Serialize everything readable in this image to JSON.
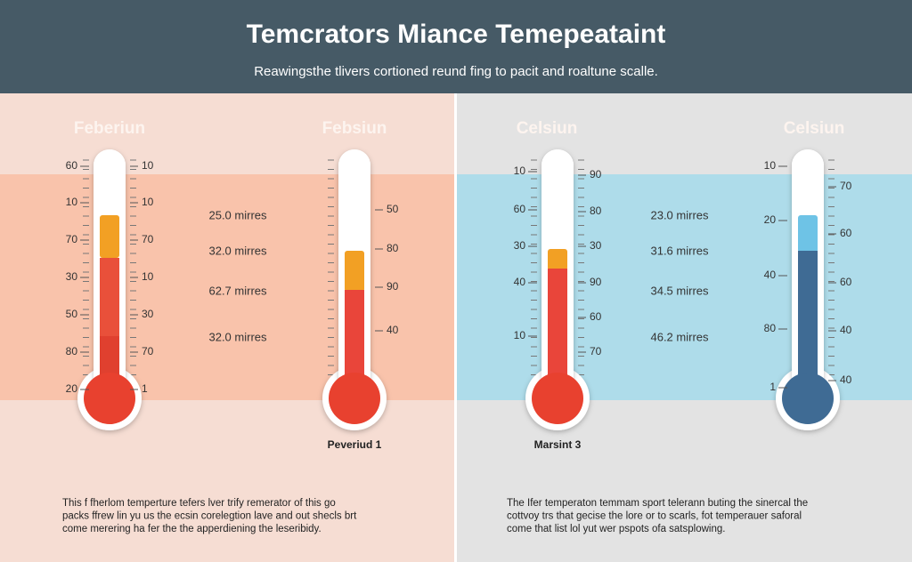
{
  "header": {
    "title": "Temcrators Miance Temepeataint",
    "subtitle": "Reawingsthe tlivers cortioned reund fing to pacit and roaltune scalle."
  },
  "thermometers": [
    {
      "label": "Feberiun",
      "left_scale": [
        "60",
        "10",
        "70",
        "30",
        "50",
        "80",
        "20"
      ],
      "right_scale": [
        "10",
        "10",
        "70",
        "10",
        "30",
        "70",
        "1"
      ]
    },
    {
      "label": "Febsiun",
      "right_scale": [
        "50",
        "80",
        "90",
        "40"
      ],
      "caption": "Peveriud 1"
    },
    {
      "label": "Celsiun",
      "left_scale": [
        "10",
        "60",
        "30",
        "40",
        "10"
      ],
      "right_scale": [
        "90",
        "80",
        "30",
        "90",
        "60",
        "70"
      ],
      "caption": "Marsint 3"
    },
    {
      "label": "Celsiun",
      "left_scale": [
        "10",
        "20",
        "40",
        "80",
        "1"
      ],
      "right_scale": [
        "70",
        "60",
        "60",
        "40",
        "40"
      ]
    }
  ],
  "readings_left": [
    "25.0 mirres",
    "32.0 mirres",
    "62.7 mirres",
    "32.0 mirres"
  ],
  "readings_right": [
    "23.0 mirres",
    "31.6 mirres",
    "34.5 mirres",
    "46.2 mirres"
  ],
  "notes_left": [
    "This f fherlom temperture tefers lver trify remerator of this go",
    "packs ffrew lin yu us the ecsin corelegtion lave and out shecls brt",
    "come merering ha fer the the apperdiening the leseribidy."
  ],
  "notes_right": [
    "The Ifer temperaton temmam sport telerann buting the sinercal the",
    "cottvoy trs that gecise the lore or to scarls, fot temperauer saforal",
    "come that list lol yut wer pspots ofa satsplowing."
  ]
}
